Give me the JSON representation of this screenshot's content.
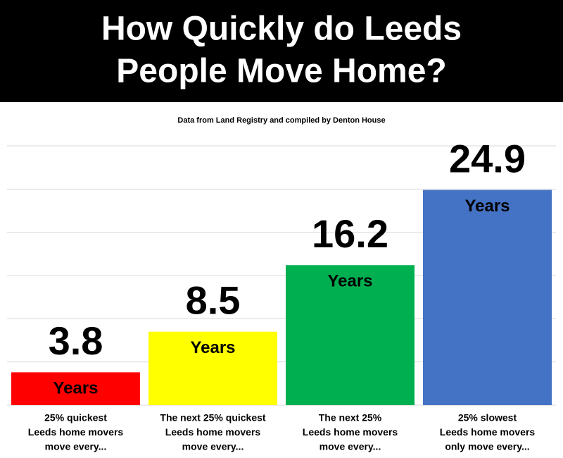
{
  "chart_data": {
    "type": "bar",
    "title": [
      "How Quickly do Leeds",
      "People Move Home?"
    ],
    "subtitle": "Data from Land Registry and compiled by Denton House",
    "categories": [
      [
        "25% quickest",
        "Leeds home movers",
        "move every..."
      ],
      [
        "The next 25% quickest",
        "Leeds home movers",
        "move every..."
      ],
      [
        "The next 25%",
        "Leeds home movers",
        "move every..."
      ],
      [
        "25% slowest",
        "Leeds home movers",
        "only move every..."
      ]
    ],
    "values": [
      3.8,
      8.5,
      16.2,
      24.9
    ],
    "bar_label": "Years",
    "colors": [
      "#ff0000",
      "#ffff00",
      "#00b050",
      "#4472c4"
    ],
    "ylim": [
      0,
      30
    ],
    "yticks": [
      0,
      5,
      10,
      15,
      20,
      25,
      30
    ],
    "grid": true
  }
}
